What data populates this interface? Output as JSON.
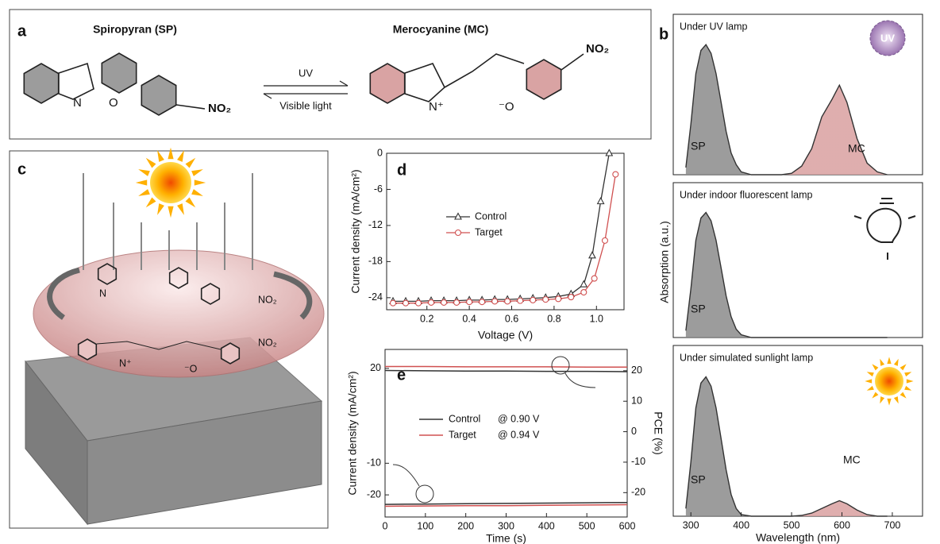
{
  "panels": {
    "a": "a",
    "b": "b",
    "c": "c",
    "d": "d",
    "e": "e",
    "b_ylabel": "Absorption (a.u.)"
  },
  "scheme": {
    "sp_name": "Spiropyran (SP)",
    "mc_name": "Merocyanine (MC)",
    "forward": "UV",
    "backward": "Visible light",
    "sp_atoms": [
      "N",
      "O",
      "NO₂"
    ],
    "mc_atoms": [
      "N⁺",
      "⁻O",
      "NO₂"
    ],
    "uv_icon": "UV"
  },
  "panel_c": {
    "top_atoms": [
      "N",
      "NO₂"
    ],
    "bottom_atoms": [
      "N⁺",
      "⁻O",
      "NO₂"
    ]
  },
  "chart_data": [
    {
      "type": "line",
      "xlabel": "Voltage (V)",
      "ylabel": "Current density (mA/cm²)",
      "xlim": [
        0.01,
        1.13
      ],
      "ylim": [
        -26,
        0
      ],
      "xticks": [
        0.2,
        0.4,
        0.6,
        0.8,
        {
          "value": 1.0,
          "label": "1.0"
        }
      ],
      "yticks": [
        0,
        -6,
        -12,
        -18,
        -24
      ],
      "series": [
        {
          "name": "Control",
          "color": "#333333",
          "marker": "triangle",
          "x": [
            0.04,
            0.1,
            0.16,
            0.22,
            0.28,
            0.34,
            0.4,
            0.46,
            0.52,
            0.58,
            0.64,
            0.7,
            0.76,
            0.82,
            0.88,
            0.94,
            0.98,
            1.02,
            1.06
          ],
          "values": [
            -24.6,
            -24.6,
            -24.6,
            -24.5,
            -24.5,
            -24.5,
            -24.4,
            -24.4,
            -24.3,
            -24.3,
            -24.2,
            -24.1,
            -24.0,
            -23.8,
            -23.4,
            -21.8,
            -17.0,
            -8.0,
            0
          ]
        },
        {
          "name": "Target",
          "color": "#d05050",
          "marker": "circle",
          "x": [
            0.04,
            0.1,
            0.16,
            0.22,
            0.28,
            0.34,
            0.4,
            0.46,
            0.52,
            0.58,
            0.64,
            0.7,
            0.76,
            0.82,
            0.88,
            0.94,
            0.99,
            1.04,
            1.09
          ],
          "values": [
            -24.9,
            -24.9,
            -24.9,
            -24.8,
            -24.8,
            -24.8,
            -24.7,
            -24.7,
            -24.6,
            -24.6,
            -24.5,
            -24.4,
            -24.3,
            -24.2,
            -23.9,
            -23.1,
            -20.8,
            -14.5,
            -3.5
          ]
        }
      ]
    },
    {
      "type": "line",
      "xlabel": "Time (s)",
      "ylabel": "Current density (mA/cm²)",
      "y2label": "PCE (%)",
      "xlim": [
        0,
        600
      ],
      "ylim": [
        -27,
        26
      ],
      "y2lim": [
        -28,
        27
      ],
      "xticks": [
        0,
        100,
        200,
        300,
        400,
        500,
        600
      ],
      "yticks": [
        20,
        -10,
        -20
      ],
      "y2ticks": [
        20,
        10,
        0,
        -10,
        -20
      ],
      "x": [
        0,
        100,
        200,
        300,
        400,
        500,
        600
      ],
      "series": [
        {
          "name": "Control",
          "label": "@ 0.90 V",
          "color": "#333333",
          "values": [
            -23.0,
            -22.9,
            -22.8,
            -22.7,
            -22.6,
            -22.5,
            -22.4
          ]
        },
        {
          "name": "Target",
          "label": "@ 0.94 V",
          "color": "#d05050",
          "values": [
            -23.6,
            -23.5,
            -23.4,
            -23.4,
            -23.3,
            -23.2,
            -23.1
          ]
        },
        {
          "axis": "y2",
          "color": "#333333",
          "values": [
            20.1,
            20.0,
            19.9,
            19.9,
            19.8,
            19.8,
            19.7
          ]
        },
        {
          "axis": "y2",
          "color": "#d05050",
          "values": [
            21.4,
            21.4,
            21.3,
            21.3,
            21.3,
            21.2,
            21.2
          ]
        }
      ]
    },
    {
      "type": "area",
      "title": "Under UV lamp",
      "annotations": [
        "SP",
        "MC"
      ],
      "xlim": [
        265,
        760
      ],
      "ylim": [
        0,
        1
      ],
      "color": "#333333",
      "fill_colors": [
        "#8a8a8a",
        "#d9a0a0"
      ],
      "x": [
        290,
        300,
        310,
        320,
        330,
        340,
        350,
        360,
        370,
        380,
        390,
        400,
        420,
        450,
        480,
        500,
        520,
        540,
        560,
        580,
        595,
        610,
        630,
        650,
        670,
        690
      ],
      "values": [
        0.05,
        0.35,
        0.7,
        0.86,
        0.9,
        0.84,
        0.7,
        0.5,
        0.3,
        0.15,
        0.07,
        0.02,
        0,
        0,
        0,
        0.01,
        0.06,
        0.18,
        0.4,
        0.52,
        0.62,
        0.5,
        0.25,
        0.08,
        0.02,
        0
      ]
    },
    {
      "type": "area",
      "title": "Under indoor fluorescent lamp",
      "annotations": [
        "SP"
      ],
      "xlim": [
        265,
        760
      ],
      "ylim": [
        0,
        1
      ],
      "color": "#333333",
      "fill_colors": [
        "#8a8a8a",
        "#d9a0a0"
      ],
      "x": [
        290,
        300,
        310,
        320,
        330,
        340,
        350,
        360,
        370,
        380,
        390,
        400,
        420,
        450,
        480,
        500,
        520,
        540,
        560,
        580,
        595,
        610,
        630,
        650,
        670,
        690
      ],
      "values": [
        0.05,
        0.35,
        0.7,
        0.86,
        0.9,
        0.84,
        0.7,
        0.5,
        0.3,
        0.15,
        0.06,
        0.02,
        0,
        0,
        0,
        0,
        0,
        0,
        0,
        0,
        0,
        0,
        0,
        0,
        0,
        0
      ]
    },
    {
      "type": "area",
      "title": "Under simulated sunlight lamp",
      "annotations": [
        "SP",
        "MC"
      ],
      "xlabel": "Wavelength (nm)",
      "xticks": [
        300,
        400,
        500,
        600,
        700
      ],
      "xlim": [
        265,
        760
      ],
      "ylim": [
        0,
        1
      ],
      "color": "#333333",
      "fill_colors": [
        "#8a8a8a",
        "#d9a0a0"
      ],
      "x": [
        290,
        300,
        310,
        320,
        330,
        340,
        350,
        360,
        370,
        380,
        390,
        400,
        420,
        450,
        480,
        500,
        520,
        540,
        560,
        580,
        595,
        610,
        630,
        650,
        670,
        690
      ],
      "values": [
        0.05,
        0.35,
        0.7,
        0.86,
        0.9,
        0.84,
        0.7,
        0.5,
        0.3,
        0.14,
        0.05,
        0.01,
        0,
        0,
        0,
        0,
        0.005,
        0.02,
        0.05,
        0.08,
        0.1,
        0.08,
        0.04,
        0.01,
        0,
        0
      ]
    }
  ]
}
